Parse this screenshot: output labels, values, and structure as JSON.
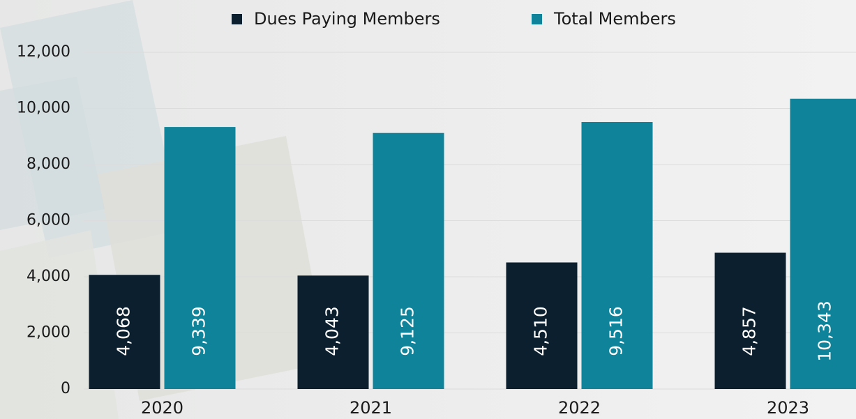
{
  "chart_data": {
    "type": "bar",
    "categories": [
      "2020",
      "2021",
      "2022",
      "2023"
    ],
    "series": [
      {
        "name": "Dues Paying Members",
        "color": "#0b1f2f",
        "values": [
          4068,
          4043,
          4510,
          4857
        ],
        "value_labels": [
          "4,068",
          "4,043",
          "4,510",
          "4,857"
        ]
      },
      {
        "name": "Total Members",
        "color": "#0e8399",
        "values": [
          9339,
          9125,
          9516,
          10343
        ],
        "value_labels": [
          "9,339",
          "9,125",
          "9,516",
          "10,343"
        ]
      }
    ],
    "ylim": [
      0,
      12000
    ],
    "yticks": [
      0,
      {
        "value": 2000,
        "label": "2,000"
      },
      {
        "value": 4000,
        "label": "4,000"
      },
      {
        "value": 6000,
        "label": "6,000"
      },
      {
        "value": 8000,
        "label": "8,000"
      },
      {
        "value": 10000,
        "label": "10,000"
      },
      {
        "value": 12000,
        "label": "12,000"
      }
    ],
    "grid": true,
    "legend": "top"
  }
}
